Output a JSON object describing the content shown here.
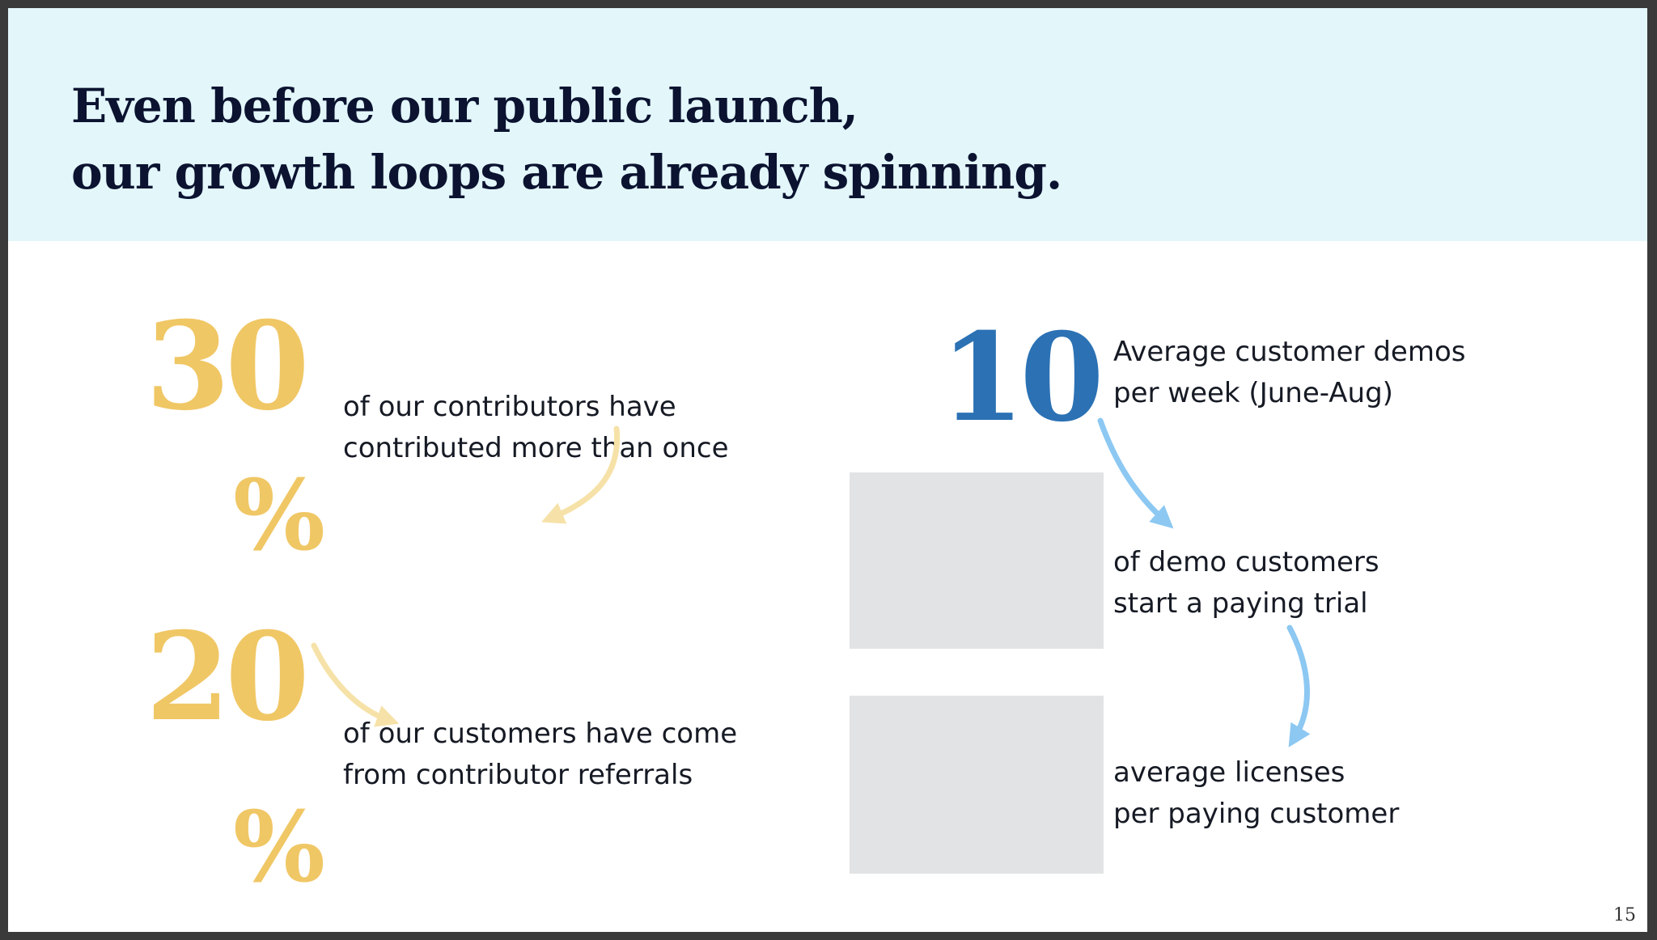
{
  "slide": {
    "title_lines": [
      "Even before our public launch,",
      "our growth loops are already spinning."
    ],
    "page_number": "15"
  },
  "stats_left": [
    {
      "number": "30",
      "percent_sign": "%",
      "lines": [
        "of our contributors have",
        "contributed more than once"
      ]
    },
    {
      "number": "20",
      "percent_sign": "%",
      "lines": [
        "of our customers have come",
        "from contributor referrals"
      ]
    }
  ],
  "stats_right": [
    {
      "number": "10",
      "lines": [
        "Average customer demos",
        "per week (June-Aug)"
      ]
    },
    {
      "lines": [
        "of demo customers",
        "start a paying trial"
      ]
    },
    {
      "lines": [
        "average licenses",
        "per paying customer"
      ]
    }
  ],
  "colors": {
    "header_bg": "#e3f7fb",
    "title": "#0b1330",
    "gold_accent": "#f0c765",
    "blue_accent": "#2b71b4",
    "arrow_gold": "#f6e2a8",
    "arrow_blue": "#8cc8f2"
  }
}
